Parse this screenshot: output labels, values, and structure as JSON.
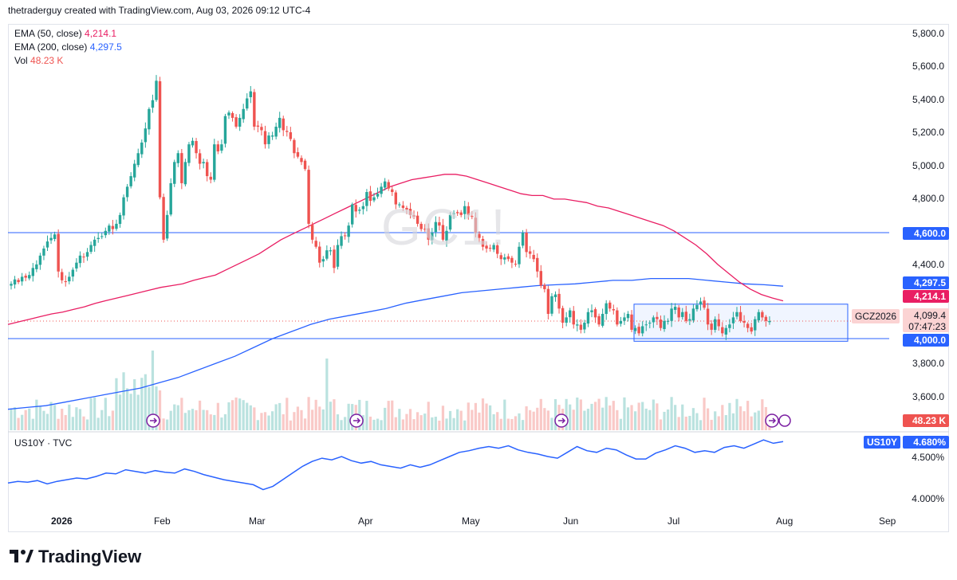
{
  "header": {
    "attribution": "thetraderguy created with TradingView.com, Aug 03, 2026 09:12 UTC-4"
  },
  "legend": {
    "ema50_label": "EMA (50, close)",
    "ema50_value": "4,214.1",
    "ema200_label": "EMA (200, close)",
    "ema200_value": "4,297.5",
    "vol_label": "Vol",
    "vol_value": "48.23 K"
  },
  "watermark": "GC1!",
  "price_axis": [
    "5,800.0",
    "5,600.0",
    "5,400.0",
    "5,200.0",
    "5,000.0",
    "4,800.0",
    "4,400.0",
    "3,800.0",
    "3,600.0"
  ],
  "price_tags": {
    "level_4600": "4,600.0",
    "ema200": "4,297.5",
    "ema50": "4,214.1",
    "last_price": "4,099.4",
    "countdown": "07:47:23",
    "level_4000": "4,000.0",
    "volume": "48.23 K",
    "symbol": "GCZ2026"
  },
  "lower_pane": {
    "label": "US10Y · TVC",
    "symbol_tag": "US10Y",
    "value_tag": "4.680%",
    "axis": [
      "4.500%",
      "4.000%"
    ]
  },
  "time_axis": [
    "2026",
    "Feb",
    "Mar",
    "Apr",
    "May",
    "Jun",
    "Jul",
    "Aug",
    "Sep"
  ],
  "footer": {
    "brand": "TradingView"
  },
  "colors": {
    "up": "#26a69a",
    "down": "#ef5350",
    "ema50": "#e91e63",
    "ema200": "#2962ff",
    "level": "#2962ff",
    "range_fill": "#e3ecff",
    "us10y": "#2962ff"
  },
  "chart_data": {
    "type": "candlestick",
    "price_range": [
      3450,
      5900
    ],
    "horizontal_levels": [
      4600,
      4000
    ],
    "range_box": {
      "from_index": 150,
      "to_index": 212,
      "high": 4195,
      "low": 3985
    },
    "closes": [
      4310,
      4335,
      4320,
      4350,
      4345,
      4360,
      4400,
      4420,
      4470,
      4510,
      4550,
      4570,
      4590,
      4380,
      4330,
      4320,
      4350,
      4390,
      4430,
      4470,
      4460,
      4490,
      4530,
      4560,
      4570,
      4580,
      4610,
      4640,
      4620,
      4650,
      4700,
      4800,
      4860,
      4920,
      4990,
      5050,
      5110,
      5190,
      5300,
      5350,
      5460,
      4800,
      4560,
      4700,
      4880,
      5000,
      5050,
      4880,
      5000,
      5100,
      5120,
      5050,
      4990,
      5000,
      4920,
      4900,
      5100,
      5060,
      5100,
      5260,
      5280,
      5250,
      5200,
      5250,
      5300,
      5360,
      5400,
      5200,
      5200,
      5180,
      5100,
      5150,
      5150,
      5200,
      5250,
      5180,
      5170,
      5130,
      5050,
      5030,
      5000,
      4960,
      4650,
      4560,
      4520,
      4430,
      4450,
      4500,
      4500,
      4400,
      4530,
      4580,
      4580,
      4640,
      4760,
      4720,
      4730,
      4750,
      4830,
      4780,
      4800,
      4820,
      4860,
      4890,
      4850,
      4830,
      4760,
      4760,
      4740,
      4730,
      4700,
      4690,
      4650,
      4620,
      4620,
      4560,
      4600,
      4660,
      4640,
      4560,
      4610,
      4700,
      4710,
      4710,
      4700,
      4750,
      4700,
      4690,
      4600,
      4570,
      4520,
      4510,
      4510,
      4530,
      4480,
      4450,
      4460,
      4450,
      4430,
      4420,
      4520,
      4600,
      4490,
      4480,
      4450,
      4380,
      4300,
      4280,
      4140,
      4240,
      4250,
      4170,
      4090,
      4120,
      4160,
      4080,
      4080,
      4050,
      4090,
      4150,
      4160,
      4120,
      4080,
      4140,
      4200,
      4170,
      4160,
      4080,
      4100,
      4120,
      4140,
      4050,
      4060,
      4030,
      4070,
      4080,
      4090,
      4120,
      4110,
      4060,
      4100,
      4100,
      4170,
      4180,
      4120,
      4150,
      4100,
      4110,
      4170,
      4190,
      4210,
      4175,
      4080,
      4050,
      4110,
      4070,
      4030,
      4060,
      4080,
      4120,
      4150,
      4100,
      4090,
      4060,
      4040,
      4110,
      4150,
      4120,
      4100,
      4099.4
    ],
    "ema50": [
      4080,
      4095,
      4110,
      4125,
      4140,
      4150,
      4165,
      4180,
      4200,
      4215,
      4230,
      4245,
      4260,
      4275,
      4290,
      4300,
      4310,
      4330,
      4345,
      4360,
      4390,
      4420,
      4450,
      4480,
      4520,
      4560,
      4590,
      4620,
      4650,
      4680,
      4710,
      4740,
      4770,
      4800,
      4830,
      4860,
      4880,
      4900,
      4910,
      4920,
      4930,
      4930,
      4920,
      4900,
      4880,
      4860,
      4840,
      4820,
      4810,
      4810,
      4790,
      4790,
      4780,
      4770,
      4750,
      4740,
      4720,
      4700,
      4680,
      4660,
      4640,
      4610,
      4570,
      4530,
      4480,
      4420,
      4370,
      4320,
      4280,
      4250,
      4230,
      4214
    ],
    "ema200": [
      3600,
      3610,
      3620,
      3640,
      3660,
      3680,
      3700,
      3720,
      3750,
      3780,
      3820,
      3860,
      3900,
      3950,
      4000,
      4040,
      4080,
      4110,
      4130,
      4150,
      4170,
      4200,
      4220,
      4240,
      4260,
      4270,
      4280,
      4290,
      4300,
      4305,
      4310,
      4320,
      4330,
      4330,
      4340,
      4340,
      4340,
      4330,
      4320,
      4310,
      4305,
      4297
    ],
    "volume_bars": 215,
    "volume_peak_label": "48.23 K",
    "us10y_series": [
      4.18,
      4.2,
      4.19,
      4.21,
      4.17,
      4.2,
      4.22,
      4.24,
      4.23,
      4.26,
      4.3,
      4.29,
      4.34,
      4.32,
      4.3,
      4.33,
      4.31,
      4.3,
      4.35,
      4.32,
      4.28,
      4.25,
      4.22,
      4.2,
      4.18,
      4.16,
      4.1,
      4.14,
      4.22,
      4.3,
      4.38,
      4.44,
      4.48,
      4.46,
      4.5,
      4.45,
      4.42,
      4.44,
      4.4,
      4.38,
      4.36,
      4.4,
      4.37,
      4.4,
      4.45,
      4.5,
      4.55,
      4.57,
      4.6,
      4.62,
      4.6,
      4.63,
      4.58,
      4.55,
      4.53,
      4.5,
      4.48,
      4.55,
      4.62,
      4.57,
      4.55,
      4.6,
      4.58,
      4.52,
      4.47,
      4.47,
      4.54,
      4.58,
      4.63,
      4.6,
      4.55,
      4.57,
      4.55,
      4.61,
      4.63,
      4.6,
      4.65,
      4.7,
      4.66,
      4.68
    ]
  }
}
